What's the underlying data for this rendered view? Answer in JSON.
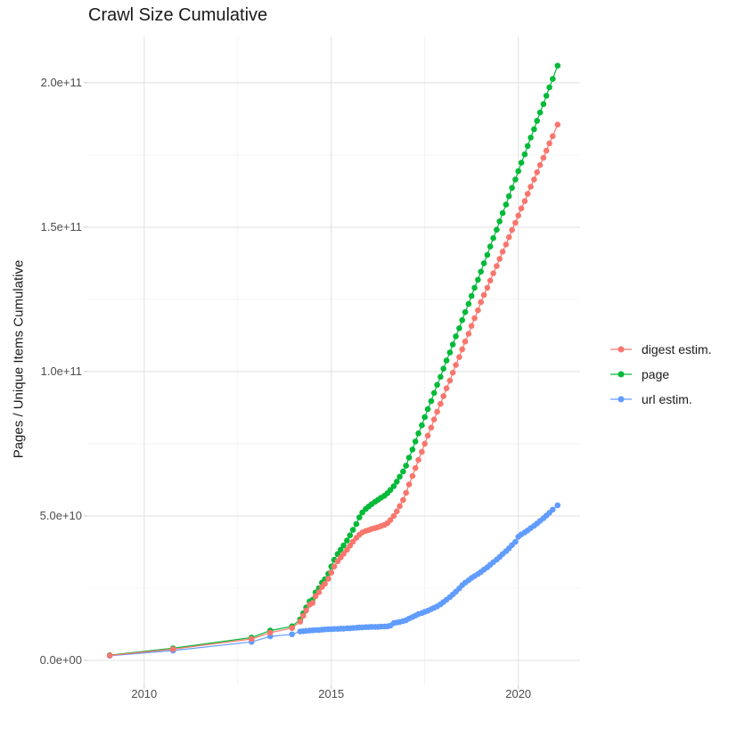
{
  "title": "Crawl Size Cumulative",
  "chart_data": {
    "type": "scatter",
    "title": "Crawl Size Cumulative",
    "subtitle": "",
    "xlabel": "",
    "ylabel": "Pages / Unique Items Cumulative",
    "y_value_scale": 1000000000,
    "y_unit_note": "point values below are in billions (1e9); axis labels shown in scientific notation",
    "x_domain": [
      2008.48,
      2021.65
    ],
    "y_domain": [
      -8.64,
      216
    ],
    "grid": true,
    "legend_position": "right",
    "x_ticks": [
      {
        "value": 2010,
        "label": "2010"
      },
      {
        "value": 2015,
        "label": "2015"
      },
      {
        "value": 2020,
        "label": "2020"
      }
    ],
    "x_minor": [
      2012.5,
      2017.5
    ],
    "y_ticks": [
      {
        "value": 0,
        "label": "0.0e+00"
      },
      {
        "value": 50,
        "label": "5.0e+10"
      },
      {
        "value": 100,
        "label": "1.0e+11"
      },
      {
        "value": 150,
        "label": "1.5e+11"
      },
      {
        "value": 200,
        "label": "2.0e+11"
      }
    ],
    "y_minor": [
      25,
      75,
      125,
      175
    ],
    "grid_major_color": "#e3e3e3",
    "grid_minor_color": "#f0f0f0",
    "tick_color": "#c8c8c8",
    "series": [
      {
        "name": "digest estim.",
        "color": "#F8766D",
        "points": [
          [
            2009.08,
            1.7
          ],
          [
            2010.77,
            3.9
          ],
          [
            2012.87,
            7.4
          ],
          [
            2013.37,
            9.6
          ],
          [
            2013.95,
            11.2
          ],
          [
            2014.17,
            13.4
          ],
          [
            2014.25,
            15.4
          ],
          [
            2014.33,
            17.3
          ],
          [
            2014.42,
            19.3
          ],
          [
            2014.5,
            19.9
          ],
          [
            2014.58,
            22.2
          ],
          [
            2014.67,
            23.6
          ],
          [
            2014.75,
            25.4
          ],
          [
            2014.83,
            26.5
          ],
          [
            2014.92,
            28.2
          ],
          [
            2015.0,
            30.4
          ],
          [
            2015.08,
            32.5
          ],
          [
            2015.17,
            34.3
          ],
          [
            2015.25,
            35.6
          ],
          [
            2015.33,
            36.9
          ],
          [
            2015.42,
            38.3
          ],
          [
            2015.5,
            39.7
          ],
          [
            2015.58,
            41.1
          ],
          [
            2015.67,
            42.4
          ],
          [
            2015.75,
            43.5
          ],
          [
            2015.83,
            44.3
          ],
          [
            2015.92,
            44.8
          ],
          [
            2016.0,
            45.1
          ],
          [
            2016.08,
            45.5
          ],
          [
            2016.17,
            45.8
          ],
          [
            2016.25,
            46.1
          ],
          [
            2016.33,
            46.5
          ],
          [
            2016.42,
            46.9
          ],
          [
            2016.5,
            47.5
          ],
          [
            2016.58,
            48.6
          ],
          [
            2016.67,
            50.0
          ],
          [
            2016.75,
            51.6
          ],
          [
            2016.83,
            53.4
          ],
          [
            2016.92,
            55.5
          ],
          [
            2017.0,
            58.0
          ],
          [
            2017.08,
            60.9
          ],
          [
            2017.17,
            63.8
          ],
          [
            2017.25,
            66.6
          ],
          [
            2017.33,
            69.4
          ],
          [
            2017.42,
            72.2
          ],
          [
            2017.5,
            75.0
          ],
          [
            2017.58,
            77.8
          ],
          [
            2017.67,
            80.6
          ],
          [
            2017.75,
            83.4
          ],
          [
            2017.83,
            86.1
          ],
          [
            2017.92,
            88.8
          ],
          [
            2018.0,
            91.5
          ],
          [
            2018.08,
            94.2
          ],
          [
            2018.17,
            96.9
          ],
          [
            2018.25,
            99.6
          ],
          [
            2018.33,
            102.3
          ],
          [
            2018.42,
            105.0
          ],
          [
            2018.5,
            107.7
          ],
          [
            2018.58,
            110.4
          ],
          [
            2018.67,
            113.1
          ],
          [
            2018.75,
            115.8
          ],
          [
            2018.83,
            118.5
          ],
          [
            2018.92,
            121.2
          ],
          [
            2019.0,
            124.0
          ],
          [
            2019.08,
            126.5
          ],
          [
            2019.17,
            129.0
          ],
          [
            2019.25,
            131.5
          ],
          [
            2019.33,
            134.0
          ],
          [
            2019.42,
            136.5
          ],
          [
            2019.5,
            139.0
          ],
          [
            2019.58,
            141.5
          ],
          [
            2019.67,
            144.0
          ],
          [
            2019.75,
            146.5
          ],
          [
            2019.83,
            149.0
          ],
          [
            2019.92,
            151.5
          ],
          [
            2020.0,
            154.0
          ],
          [
            2020.08,
            156.5
          ],
          [
            2020.17,
            159.0
          ],
          [
            2020.25,
            161.5
          ],
          [
            2020.33,
            164.0
          ],
          [
            2020.42,
            166.5
          ],
          [
            2020.5,
            169.0
          ],
          [
            2020.58,
            171.5
          ],
          [
            2020.67,
            174.0
          ],
          [
            2020.75,
            176.5
          ],
          [
            2020.83,
            179.0
          ],
          [
            2020.92,
            181.5
          ],
          [
            2021.05,
            185.5
          ]
        ]
      },
      {
        "name": "page",
        "color": "#00BA38",
        "points": [
          [
            2009.08,
            1.8
          ],
          [
            2010.77,
            4.2
          ],
          [
            2012.87,
            7.9
          ],
          [
            2013.37,
            10.3
          ],
          [
            2013.95,
            11.8
          ],
          [
            2014.17,
            14.2
          ],
          [
            2014.25,
            16.3
          ],
          [
            2014.33,
            18.3
          ],
          [
            2014.42,
            20.4
          ],
          [
            2014.5,
            21.0
          ],
          [
            2014.58,
            23.5
          ],
          [
            2014.67,
            25.0
          ],
          [
            2014.75,
            26.9
          ],
          [
            2014.83,
            28.1
          ],
          [
            2014.92,
            30.0
          ],
          [
            2015.0,
            32.5
          ],
          [
            2015.08,
            34.8
          ],
          [
            2015.17,
            36.8
          ],
          [
            2015.25,
            38.3
          ],
          [
            2015.33,
            39.8
          ],
          [
            2015.42,
            41.5
          ],
          [
            2015.5,
            43.3
          ],
          [
            2015.58,
            45.2
          ],
          [
            2015.67,
            47.2
          ],
          [
            2015.75,
            49.5
          ],
          [
            2015.83,
            51.2
          ],
          [
            2015.92,
            52.4
          ],
          [
            2016.0,
            53.3
          ],
          [
            2016.08,
            54.1
          ],
          [
            2016.17,
            54.9
          ],
          [
            2016.25,
            55.6
          ],
          [
            2016.33,
            56.3
          ],
          [
            2016.42,
            57.0
          ],
          [
            2016.5,
            57.9
          ],
          [
            2016.58,
            59.0
          ],
          [
            2016.67,
            60.3
          ],
          [
            2016.75,
            61.9
          ],
          [
            2016.83,
            63.6
          ],
          [
            2016.92,
            65.4
          ],
          [
            2017.0,
            67.4
          ],
          [
            2017.08,
            70.2
          ],
          [
            2017.17,
            73.0
          ],
          [
            2017.25,
            75.8
          ],
          [
            2017.33,
            78.6
          ],
          [
            2017.42,
            81.4
          ],
          [
            2017.5,
            84.2
          ],
          [
            2017.58,
            87.0
          ],
          [
            2017.67,
            89.8
          ],
          [
            2017.75,
            92.6
          ],
          [
            2017.83,
            95.4
          ],
          [
            2017.92,
            98.2
          ],
          [
            2018.0,
            101.0
          ],
          [
            2018.08,
            103.8
          ],
          [
            2018.17,
            106.6
          ],
          [
            2018.25,
            109.4
          ],
          [
            2018.33,
            112.2
          ],
          [
            2018.42,
            115.0
          ],
          [
            2018.5,
            117.8
          ],
          [
            2018.58,
            120.6
          ],
          [
            2018.67,
            123.4
          ],
          [
            2018.75,
            126.2
          ],
          [
            2018.83,
            129.0
          ],
          [
            2018.92,
            131.8
          ],
          [
            2019.0,
            134.6
          ],
          [
            2019.08,
            137.5
          ],
          [
            2019.17,
            140.4
          ],
          [
            2019.25,
            143.3
          ],
          [
            2019.33,
            146.2
          ],
          [
            2019.42,
            149.1
          ],
          [
            2019.5,
            152.0
          ],
          [
            2019.58,
            154.9
          ],
          [
            2019.67,
            157.8
          ],
          [
            2019.75,
            160.7
          ],
          [
            2019.83,
            163.6
          ],
          [
            2019.92,
            166.5
          ],
          [
            2020.0,
            169.4
          ],
          [
            2020.08,
            172.3
          ],
          [
            2020.17,
            175.2
          ],
          [
            2020.25,
            178.1
          ],
          [
            2020.33,
            181.0
          ],
          [
            2020.42,
            183.9
          ],
          [
            2020.5,
            186.8
          ],
          [
            2020.58,
            189.7
          ],
          [
            2020.67,
            192.6
          ],
          [
            2020.75,
            195.5
          ],
          [
            2020.83,
            198.4
          ],
          [
            2020.92,
            201.3
          ],
          [
            2021.05,
            205.9
          ]
        ]
      },
      {
        "name": "url estim.",
        "color": "#619CFF",
        "points": [
          [
            2009.08,
            1.6
          ],
          [
            2010.77,
            3.4
          ],
          [
            2012.87,
            6.4
          ],
          [
            2013.37,
            8.3
          ],
          [
            2013.95,
            9.0
          ],
          [
            2014.17,
            10.0
          ],
          [
            2014.25,
            10.1
          ],
          [
            2014.33,
            10.2
          ],
          [
            2014.42,
            10.3
          ],
          [
            2014.5,
            10.4
          ],
          [
            2014.58,
            10.5
          ],
          [
            2014.67,
            10.5
          ],
          [
            2014.75,
            10.6
          ],
          [
            2014.83,
            10.7
          ],
          [
            2014.92,
            10.8
          ],
          [
            2015.0,
            10.8
          ],
          [
            2015.08,
            10.9
          ],
          [
            2015.17,
            10.9
          ],
          [
            2015.25,
            11.0
          ],
          [
            2015.33,
            11.0
          ],
          [
            2015.42,
            11.1
          ],
          [
            2015.5,
            11.1
          ],
          [
            2015.58,
            11.2
          ],
          [
            2015.67,
            11.3
          ],
          [
            2015.75,
            11.4
          ],
          [
            2015.83,
            11.4
          ],
          [
            2015.92,
            11.5
          ],
          [
            2016.0,
            11.5
          ],
          [
            2016.08,
            11.6
          ],
          [
            2016.17,
            11.6
          ],
          [
            2016.25,
            11.6
          ],
          [
            2016.33,
            11.7
          ],
          [
            2016.42,
            11.7
          ],
          [
            2016.5,
            11.8
          ],
          [
            2016.58,
            12.0
          ],
          [
            2016.67,
            12.9
          ],
          [
            2016.75,
            13.1
          ],
          [
            2016.83,
            13.3
          ],
          [
            2016.92,
            13.6
          ],
          [
            2017.0,
            13.9
          ],
          [
            2017.08,
            14.5
          ],
          [
            2017.17,
            15.0
          ],
          [
            2017.25,
            15.5
          ],
          [
            2017.33,
            16.0
          ],
          [
            2017.42,
            16.4
          ],
          [
            2017.5,
            16.8
          ],
          [
            2017.58,
            17.2
          ],
          [
            2017.67,
            17.7
          ],
          [
            2017.75,
            18.2
          ],
          [
            2017.83,
            18.7
          ],
          [
            2017.92,
            19.4
          ],
          [
            2018.0,
            20.2
          ],
          [
            2018.08,
            21.0
          ],
          [
            2018.17,
            21.9
          ],
          [
            2018.25,
            22.8
          ],
          [
            2018.33,
            23.8
          ],
          [
            2018.42,
            24.9
          ],
          [
            2018.5,
            26.0
          ],
          [
            2018.58,
            26.9
          ],
          [
            2018.67,
            27.7
          ],
          [
            2018.75,
            28.5
          ],
          [
            2018.83,
            29.2
          ],
          [
            2018.92,
            29.9
          ],
          [
            2019.0,
            30.6
          ],
          [
            2019.08,
            31.4
          ],
          [
            2019.17,
            32.2
          ],
          [
            2019.25,
            33.1
          ],
          [
            2019.33,
            34.0
          ],
          [
            2019.42,
            34.9
          ],
          [
            2019.5,
            35.8
          ],
          [
            2019.58,
            36.8
          ],
          [
            2019.67,
            37.8
          ],
          [
            2019.75,
            38.8
          ],
          [
            2019.83,
            39.9
          ],
          [
            2019.92,
            41.0
          ],
          [
            2020.0,
            42.8
          ],
          [
            2020.08,
            43.6
          ],
          [
            2020.17,
            44.3
          ],
          [
            2020.25,
            45.0
          ],
          [
            2020.33,
            45.8
          ],
          [
            2020.42,
            46.6
          ],
          [
            2020.5,
            47.4
          ],
          [
            2020.58,
            48.3
          ],
          [
            2020.67,
            49.2
          ],
          [
            2020.75,
            50.1
          ],
          [
            2020.83,
            51.1
          ],
          [
            2020.92,
            52.2
          ],
          [
            2021.05,
            53.7
          ]
        ]
      }
    ]
  }
}
